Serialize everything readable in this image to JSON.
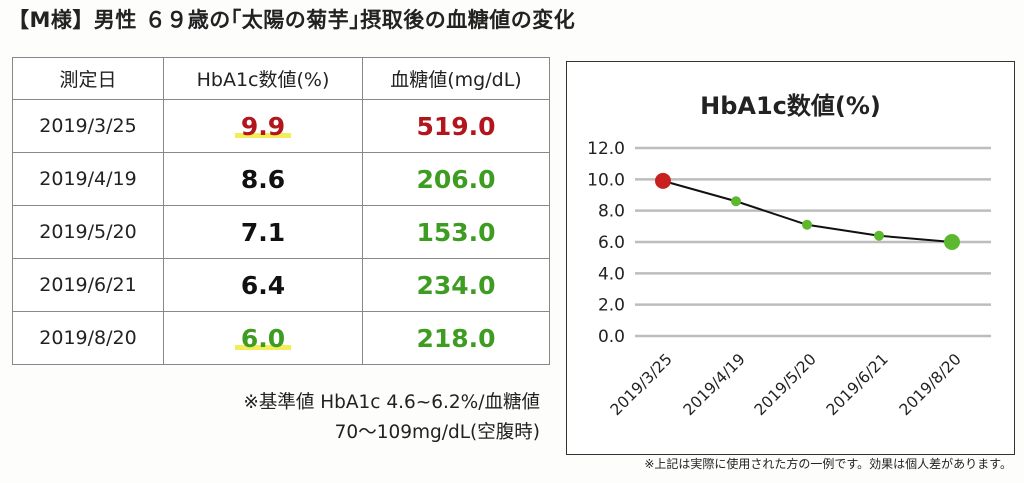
{
  "title": "【M様】男性 ６９歳の｢太陽の菊芋｣摂取後の血糖値の変化",
  "table": {
    "headers": [
      "測定日",
      "HbA1c数値(%)",
      "血糖値(mg/dL)"
    ],
    "rows": [
      {
        "date": "2019/3/25",
        "hba1c": "9.9",
        "glucose": "519.0"
      },
      {
        "date": "2019/4/19",
        "hba1c": "8.6",
        "glucose": "206.0"
      },
      {
        "date": "2019/5/20",
        "hba1c": "7.1",
        "glucose": "153.0"
      },
      {
        "date": "2019/6/21",
        "hba1c": "6.4",
        "glucose": "234.0"
      },
      {
        "date": "2019/8/20",
        "hba1c": "6.0",
        "glucose": "218.0"
      }
    ]
  },
  "note": {
    "line1": "※基準値 HbA1c 4.6~6.2%/血糖値",
    "line2": "70～109mg/dL(空腹時)"
  },
  "footnote": "※上記は実際に使用された方の一例です。効果は個人差があります。",
  "colors": {
    "red": "#b2151b",
    "green": "#3f9c22",
    "highlight": "#f2ee5b",
    "marker_red": "#c8201f",
    "marker_green": "#5cb92f"
  },
  "chart_data": {
    "type": "line",
    "title": "HbA1c数値(%)",
    "categories": [
      "2019/3/25",
      "2019/4/19",
      "2019/5/20",
      "2019/6/21",
      "2019/8/20"
    ],
    "values": [
      9.9,
      8.6,
      7.1,
      6.4,
      6.0
    ],
    "ylim": [
      0,
      12
    ],
    "yticks": [
      "0.0",
      "2.0",
      "4.0",
      "6.0",
      "8.0",
      "10.0",
      "12.0"
    ],
    "grid": true,
    "legend": "none"
  }
}
